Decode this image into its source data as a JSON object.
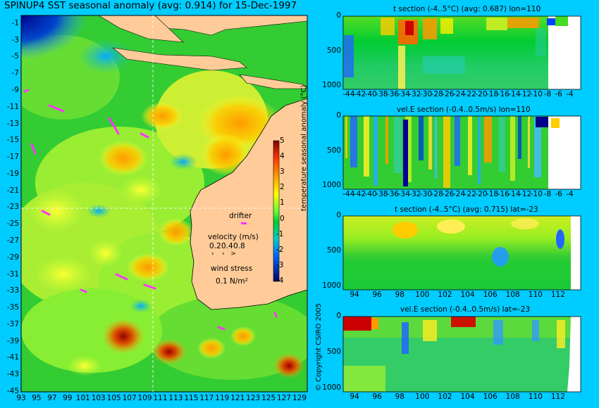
{
  "header": {
    "title": "SPINUP4 SST seasonal anomaly (avg: 0.914) for 15-Dec-1997",
    "copyright": "© Copyright CSIRO 2005"
  },
  "colors": {
    "background": "#00ccff",
    "land": "#ffcc99",
    "mask": "#ffffff",
    "drifter": "#ff33ff"
  },
  "chart_data": [
    {
      "type": "heatmap",
      "title": "SPINUP4 SST seasonal anomaly (avg: 0.914) for 15-Dec-1997",
      "x_ticks": [
        "93",
        "95",
        "97",
        "99",
        "101",
        "103",
        "105",
        "107",
        "109",
        "111",
        "113",
        "115",
        "117",
        "119",
        "121",
        "123",
        "125",
        "127",
        "129"
      ],
      "y_ticks": [
        "-1",
        "-3",
        "-5",
        "-7",
        "-9",
        "-11",
        "-13",
        "-15",
        "-17",
        "-19",
        "-21",
        "-23",
        "-25",
        "-27",
        "-29",
        "-31",
        "-33",
        "-35",
        "-37",
        "-39",
        "-41",
        "-43",
        "-45"
      ],
      "xlim": [
        93,
        130
      ],
      "ylim": [
        -45,
        0
      ],
      "avg": 0.914,
      "colorbar": {
        "label": "temperature seasonal anomaly (°C)",
        "ticks": [
          "5",
          "4",
          "3",
          "2",
          "1",
          "0",
          "-1",
          "-2",
          "-3",
          "-4"
        ],
        "range": [
          -4,
          5
        ]
      },
      "legend": {
        "drifter": "drifter",
        "velocity_label": "velocity (m/s)",
        "velocity_values": [
          "0.2",
          "0.4",
          "0.8"
        ],
        "wind_label": "wind stress",
        "wind_value": "0.1 N/m²"
      }
    },
    {
      "type": "heatmap",
      "title": "t section (-4..5°C) (avg: 0.687) lon=110",
      "x_ticks": [
        "-44",
        "-42",
        "-40",
        "-38",
        "-36",
        "-34",
        "-32",
        "-30",
        "-28",
        "-26",
        "-24",
        "-22",
        "-20",
        "-18",
        "-16",
        "-14",
        "-12",
        "-10",
        "-8",
        "-6",
        "-4"
      ],
      "y_ticks": [
        "0",
        "500",
        "1000"
      ],
      "xlim": [
        -45,
        -2
      ],
      "ylim": [
        1050,
        0
      ],
      "avg": 0.687
    },
    {
      "type": "heatmap",
      "title": "vel.E section (-0.4..0.5m/s) lon=110",
      "x_ticks": [
        "-44",
        "-42",
        "-40",
        "-38",
        "-36",
        "-34",
        "-32",
        "-30",
        "-28",
        "-26",
        "-24",
        "-22",
        "-20",
        "-18",
        "-16",
        "-14",
        "-12",
        "-10",
        "-8",
        "-6",
        "-4"
      ],
      "y_ticks": [
        "0",
        "500",
        "1000"
      ],
      "xlim": [
        -45,
        -2
      ],
      "ylim": [
        1050,
        0
      ]
    },
    {
      "type": "heatmap",
      "title": "t section (-4..5°C) (avg: 0.715) lat=-23",
      "x_ticks": [
        "94",
        "96",
        "98",
        "100",
        "102",
        "104",
        "106",
        "108",
        "110",
        "112"
      ],
      "y_ticks": [
        "0",
        "500",
        "1000"
      ],
      "xlim": [
        93,
        114
      ],
      "ylim": [
        1050,
        0
      ],
      "avg": 0.715
    },
    {
      "type": "heatmap",
      "title": "vel.E section (-0.4..0.5m/s) lat=-23",
      "x_ticks": [
        "94",
        "96",
        "98",
        "100",
        "102",
        "104",
        "106",
        "108",
        "110",
        "112"
      ],
      "y_ticks": [
        "0",
        "500",
        "1000"
      ],
      "xlim": [
        93,
        114
      ],
      "ylim": [
        1050,
        0
      ]
    }
  ]
}
